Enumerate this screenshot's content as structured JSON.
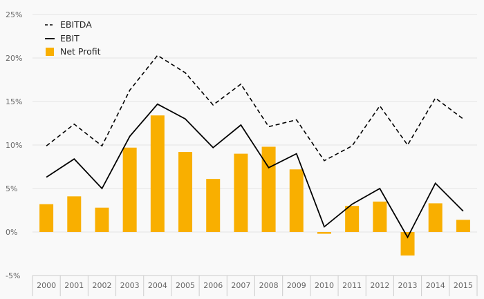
{
  "chart_data": {
    "type": "bar",
    "categories": [
      "2000",
      "2001",
      "2002",
      "2003",
      "2004",
      "2005",
      "2006",
      "2007",
      "2008",
      "2009",
      "2010",
      "2011",
      "2012",
      "2013",
      "2014",
      "2015"
    ],
    "ylim": [
      -5,
      25
    ],
    "y_ticks": [
      25,
      20,
      15,
      10,
      5,
      0,
      -5
    ],
    "y_tick_labels": [
      "25%",
      "20%",
      "15%",
      "10%",
      "5%",
      "0%",
      "-5%"
    ],
    "grid": true,
    "legend_position": "top-left",
    "series": [
      {
        "name": "EBITDA",
        "type": "line",
        "style": "dashed",
        "color": "#000000",
        "values": [
          9.9,
          12.4,
          9.9,
          16.3,
          20.3,
          18.3,
          14.6,
          17.0,
          12.1,
          12.9,
          8.2,
          9.9,
          14.5,
          10.0,
          15.4,
          13.0
        ]
      },
      {
        "name": "EBIT",
        "type": "line",
        "style": "solid",
        "color": "#000000",
        "values": [
          6.3,
          8.4,
          5.0,
          11.0,
          14.7,
          13.0,
          9.7,
          12.3,
          7.4,
          9.0,
          0.6,
          3.2,
          5.0,
          -0.6,
          5.6,
          2.4
        ]
      },
      {
        "name": "Net Profit",
        "type": "bar",
        "color": "#f9af00",
        "values": [
          3.2,
          4.1,
          2.8,
          9.7,
          13.4,
          9.2,
          6.1,
          9.0,
          9.8,
          7.2,
          -0.2,
          3.0,
          3.5,
          -2.7,
          3.3,
          1.4
        ]
      }
    ]
  }
}
